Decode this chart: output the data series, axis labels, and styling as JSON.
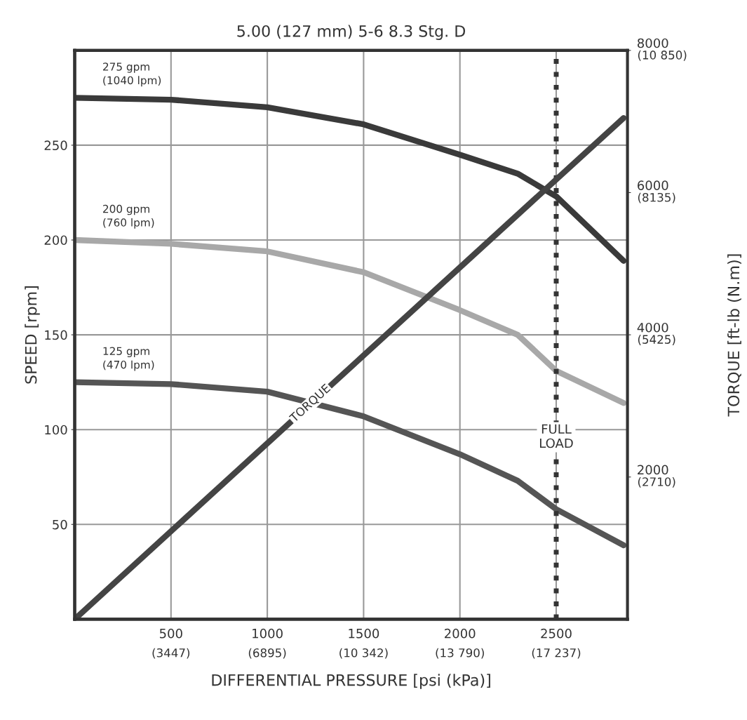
{
  "chart_data": {
    "type": "line",
    "title": "5.00 (127 mm) 5-6 8.3 Stg. D",
    "xlabel": "DIFFERENTIAL PRESSURE [psi (kPa)]",
    "ylabel": "SPEED [rpm]",
    "y2label": "TORQUE [ft-lb (N.m)]",
    "x": [
      0,
      500,
      1000,
      1500,
      2000,
      2300,
      2500,
      2850
    ],
    "series": [
      {
        "name": "275 gpm\n(1040 lpm)",
        "color": "#3a3a3a",
        "values": [
          275,
          274,
          270,
          261,
          245,
          235,
          223,
          189
        ]
      },
      {
        "name": "200 gpm\n(760 lpm)",
        "color": "#a8a8a8",
        "values": [
          200,
          198,
          194,
          183,
          163,
          150,
          131,
          114
        ]
      },
      {
        "name": "125 gpm\n(470 lpm)",
        "color": "#555555",
        "values": [
          125,
          124,
          120,
          107,
          87,
          73,
          58,
          39
        ]
      },
      {
        "name": "TORQUE",
        "color": "#444444",
        "axis": "y2",
        "x": [
          0,
          2850
        ],
        "values": [
          0,
          7050
        ]
      }
    ],
    "xlim": [
      0,
      2870
    ],
    "ylim": [
      0,
      300
    ],
    "y2lim": [
      0,
      8000
    ],
    "xticks": [
      500,
      1000,
      1500,
      2000,
      2500
    ],
    "x2lim": [
      0,
      19788
    ],
    "x2ticks": [
      {
        "value": 3447,
        "label": "(3447)"
      },
      {
        "value": 6895,
        "label": "(6895)"
      },
      {
        "value": 10342,
        "label": "(10 342)"
      },
      {
        "value": 13790,
        "label": "(13 790)"
      },
      {
        "value": 17237,
        "label": "(17 237)"
      }
    ],
    "yticks": [
      50,
      100,
      150,
      200,
      250
    ],
    "y2ticks": [
      2000,
      4000,
      6000,
      8000
    ],
    "y3lim": [
      0,
      10850
    ],
    "y3ticks": [
      {
        "value": 2710,
        "label": "(2710)"
      },
      {
        "value": 5425,
        "label": "(5425)"
      },
      {
        "value": 8135,
        "label": "(8135)"
      },
      {
        "value": 10850,
        "label": "(10 850)"
      }
    ],
    "ref_lines": [
      {
        "axis": "x",
        "value": 2500,
        "label": "FULL\nLOAD",
        "color": "#333333",
        "line_style": "dotted"
      }
    ],
    "grid": true,
    "line_style": "solid",
    "marker": "none",
    "legend": false
  }
}
